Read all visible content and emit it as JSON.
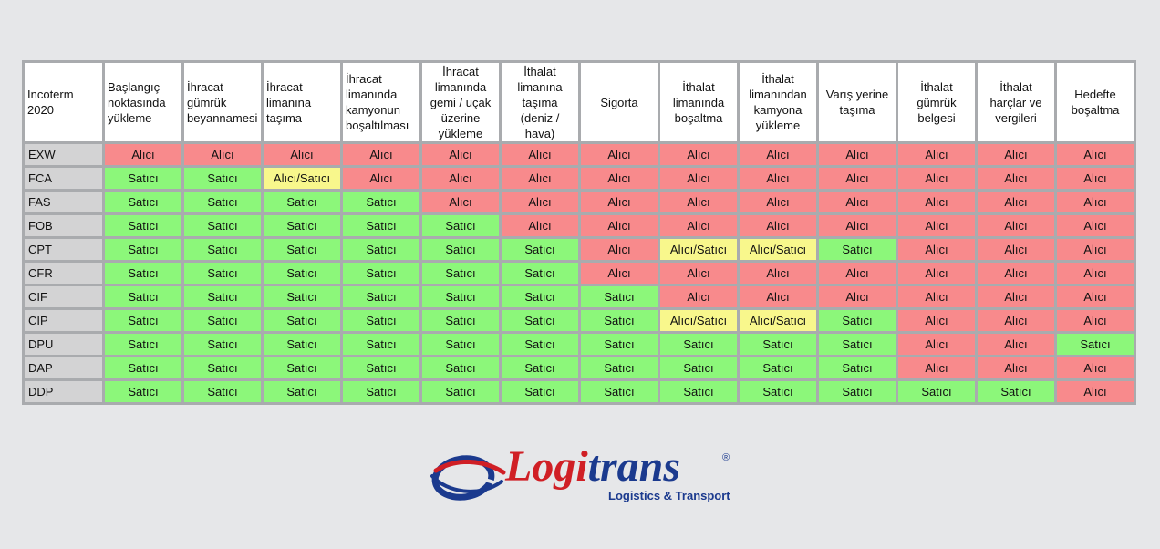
{
  "table": {
    "headers": [
      {
        "label": "Incoterm 2020",
        "align": "left"
      },
      {
        "label": "Başlangıç noktasında yükleme",
        "align": "left"
      },
      {
        "label": "İhracat gümrük beyannamesi",
        "align": "left"
      },
      {
        "label": "İhracat limanına taşıma",
        "align": "left"
      },
      {
        "label": "İhracat limanında kamyonun boşaltılması",
        "align": "left"
      },
      {
        "label": "İhracat limanında gemi / uçak üzerine yükleme",
        "align": "center"
      },
      {
        "label": "İthalat limanına taşıma (deniz / hava)",
        "align": "center"
      },
      {
        "label": "Sigorta",
        "align": "center"
      },
      {
        "label": "İthalat limanında boşaltma",
        "align": "center"
      },
      {
        "label": "İthalat limanından kamyona yükleme",
        "align": "center"
      },
      {
        "label": "Varış yerine taşıma",
        "align": "center"
      },
      {
        "label": "İthalat gümrük belgesi",
        "align": "center"
      },
      {
        "label": "İthalat harçlar ve vergileri",
        "align": "center"
      },
      {
        "label": "Hedefte boşaltma",
        "align": "center"
      }
    ],
    "value_colors": {
      "Alıcı": "#f88a8c",
      "Satıcı": "#8cf77a",
      "Alıcı/Satıcı": "#f8f78c"
    },
    "rows": [
      {
        "term": "EXW",
        "cells": [
          "Alıcı",
          "Alıcı",
          "Alıcı",
          "Alıcı",
          "Alıcı",
          "Alıcı",
          "Alıcı",
          "Alıcı",
          "Alıcı",
          "Alıcı",
          "Alıcı",
          "Alıcı",
          "Alıcı"
        ]
      },
      {
        "term": "FCA",
        "cells": [
          "Satıcı",
          "Satıcı",
          "Alıcı/Satıcı",
          "Alıcı",
          "Alıcı",
          "Alıcı",
          "Alıcı",
          "Alıcı",
          "Alıcı",
          "Alıcı",
          "Alıcı",
          "Alıcı",
          "Alıcı"
        ]
      },
      {
        "term": "FAS",
        "cells": [
          "Satıcı",
          "Satıcı",
          "Satıcı",
          "Satıcı",
          "Alıcı",
          "Alıcı",
          "Alıcı",
          "Alıcı",
          "Alıcı",
          "Alıcı",
          "Alıcı",
          "Alıcı",
          "Alıcı"
        ]
      },
      {
        "term": "FOB",
        "cells": [
          "Satıcı",
          "Satıcı",
          "Satıcı",
          "Satıcı",
          "Satıcı",
          "Alıcı",
          "Alıcı",
          "Alıcı",
          "Alıcı",
          "Alıcı",
          "Alıcı",
          "Alıcı",
          "Alıcı"
        ]
      },
      {
        "term": "CPT",
        "cells": [
          "Satıcı",
          "Satıcı",
          "Satıcı",
          "Satıcı",
          "Satıcı",
          "Satıcı",
          "Alıcı",
          "Alıcı/Satıcı",
          "Alıcı/Satıcı",
          "Satıcı",
          "Alıcı",
          "Alıcı",
          "Alıcı"
        ]
      },
      {
        "term": "CFR",
        "cells": [
          "Satıcı",
          "Satıcı",
          "Satıcı",
          "Satıcı",
          "Satıcı",
          "Satıcı",
          "Alıcı",
          "Alıcı",
          "Alıcı",
          "Alıcı",
          "Alıcı",
          "Alıcı",
          "Alıcı"
        ]
      },
      {
        "term": "CIF",
        "cells": [
          "Satıcı",
          "Satıcı",
          "Satıcı",
          "Satıcı",
          "Satıcı",
          "Satıcı",
          "Satıcı",
          "Alıcı",
          "Alıcı",
          "Alıcı",
          "Alıcı",
          "Alıcı",
          "Alıcı"
        ]
      },
      {
        "term": "CIP",
        "cells": [
          "Satıcı",
          "Satıcı",
          "Satıcı",
          "Satıcı",
          "Satıcı",
          "Satıcı",
          "Satıcı",
          "Alıcı/Satıcı",
          "Alıcı/Satıcı",
          "Satıcı",
          "Alıcı",
          "Alıcı",
          "Alıcı"
        ]
      },
      {
        "term": "DPU",
        "cells": [
          "Satıcı",
          "Satıcı",
          "Satıcı",
          "Satıcı",
          "Satıcı",
          "Satıcı",
          "Satıcı",
          "Satıcı",
          "Satıcı",
          "Satıcı",
          "Alıcı",
          "Alıcı",
          "Satıcı"
        ]
      },
      {
        "term": "DAP",
        "cells": [
          "Satıcı",
          "Satıcı",
          "Satıcı",
          "Satıcı",
          "Satıcı",
          "Satıcı",
          "Satıcı",
          "Satıcı",
          "Satıcı",
          "Satıcı",
          "Alıcı",
          "Alıcı",
          "Alıcı"
        ]
      },
      {
        "term": "DDP",
        "cells": [
          "Satıcı",
          "Satıcı",
          "Satıcı",
          "Satıcı",
          "Satıcı",
          "Satıcı",
          "Satıcı",
          "Satıcı",
          "Satıcı",
          "Satıcı",
          "Satıcı",
          "Satıcı",
          "Alıcı"
        ]
      }
    ]
  },
  "logo": {
    "word_part1": "Logi",
    "word_part2": "trans",
    "registered": "®",
    "tagline": "Logistics & Transport",
    "colors": {
      "red": "#d01f25",
      "blue": "#1b3a8e"
    },
    "icon": "globe-swoosh-icon"
  }
}
